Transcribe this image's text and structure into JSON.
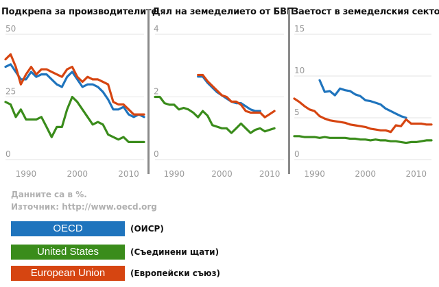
{
  "chart_data": [
    {
      "type": "line",
      "title": "Подкрепа за производителите",
      "y_ticks": [
        "50",
        "25",
        "0"
      ],
      "x_ticks": [
        "1990",
        "2000",
        "2010"
      ],
      "ylim": [
        0,
        50
      ],
      "xlim": [
        1986,
        2013
      ],
      "grid": true,
      "series": [
        {
          "name": "OECD",
          "x": [
            1986,
            1987,
            1988,
            1989,
            1990,
            1991,
            1992,
            1993,
            1994,
            1995,
            1996,
            1997,
            1998,
            1999,
            2000,
            2001,
            2002,
            2003,
            2004,
            2005,
            2006,
            2007,
            2008,
            2009,
            2010,
            2011,
            2012,
            2013
          ],
          "values": [
            37,
            38,
            35,
            32,
            32,
            35,
            33,
            34,
            34,
            32,
            30,
            29,
            33,
            35,
            32,
            29,
            30,
            30,
            29,
            27,
            24,
            20,
            20,
            21,
            18,
            17,
            18,
            17
          ]
        },
        {
          "name": "United States",
          "x": [
            1986,
            1987,
            1988,
            1989,
            1990,
            1991,
            1992,
            1993,
            1994,
            1995,
            1996,
            1997,
            1998,
            1999,
            2000,
            2001,
            2002,
            2003,
            2004,
            2005,
            2006,
            2007,
            2008,
            2009,
            2010,
            2011,
            2012,
            2013
          ],
          "values": [
            23,
            22,
            17,
            20,
            16,
            16,
            16,
            17,
            13,
            9,
            13,
            13,
            20,
            25,
            23,
            20,
            17,
            14,
            15,
            14,
            10,
            9,
            8,
            9,
            7,
            7,
            7,
            7
          ]
        },
        {
          "name": "European Union",
          "x": [
            1986,
            1987,
            1988,
            1989,
            1990,
            1991,
            1992,
            1993,
            1994,
            1995,
            1996,
            1997,
            1998,
            1999,
            2000,
            2001,
            2002,
            2003,
            2004,
            2005,
            2006,
            2007,
            2008,
            2009,
            2010,
            2011,
            2012,
            2013
          ],
          "values": [
            40,
            42,
            37,
            30,
            34,
            37,
            34,
            36,
            36,
            35,
            34,
            33,
            36,
            37,
            33,
            31,
            33,
            32,
            32,
            31,
            30,
            23,
            22,
            22,
            20,
            18,
            18,
            18
          ]
        }
      ]
    },
    {
      "type": "line",
      "title": "Дял на земеделието от БВП",
      "y_ticks": [
        "4",
        "2",
        "0"
      ],
      "x_ticks": [
        "1990",
        "2000",
        "2010"
      ],
      "ylim": [
        0,
        4
      ],
      "xlim": [
        1986,
        2013
      ],
      "grid": true,
      "series": [
        {
          "name": "OECD",
          "x": [
            1995,
            1996,
            1997,
            1998,
            1999,
            2000,
            2001,
            2002,
            2003,
            2004,
            2005,
            2006,
            2007,
            2008
          ],
          "values": [
            2.65,
            2.65,
            2.45,
            2.3,
            2.15,
            2.05,
            1.95,
            1.85,
            1.8,
            1.8,
            1.7,
            1.6,
            1.55,
            1.55
          ]
        },
        {
          "name": "United States",
          "x": [
            1986,
            1987,
            1988,
            1989,
            1990,
            1991,
            1992,
            1993,
            1994,
            1995,
            1996,
            1997,
            1998,
            1999,
            2000,
            2001,
            2002,
            2003,
            2004,
            2005,
            2006,
            2007,
            2008,
            2009,
            2010,
            2011
          ],
          "values": [
            2.0,
            2.0,
            1.8,
            1.75,
            1.75,
            1.6,
            1.65,
            1.6,
            1.5,
            1.35,
            1.55,
            1.4,
            1.1,
            1.05,
            1.0,
            1.0,
            0.85,
            1.0,
            1.15,
            1.0,
            0.85,
            0.95,
            1.0,
            0.9,
            0.95,
            1.0
          ]
        },
        {
          "name": "European Union",
          "x": [
            1995,
            1996,
            1997,
            1998,
            1999,
            2000,
            2001,
            2002,
            2003,
            2004,
            2005,
            2006,
            2007,
            2008,
            2009,
            2010,
            2011
          ],
          "values": [
            2.7,
            2.7,
            2.5,
            2.35,
            2.2,
            2.05,
            2.0,
            1.85,
            1.85,
            1.75,
            1.55,
            1.5,
            1.5,
            1.5,
            1.35,
            1.45,
            1.55
          ]
        }
      ]
    },
    {
      "type": "line",
      "title": "Заетост в земеделския сектор",
      "y_ticks": [
        "15",
        "10",
        "5",
        "0"
      ],
      "x_ticks": [
        "1990",
        "2000",
        "2010"
      ],
      "ylim": [
        0,
        15
      ],
      "xlim": [
        1986,
        2013
      ],
      "grid": true,
      "series": [
        {
          "name": "OECD",
          "x": [
            1991,
            1992,
            1993,
            1994,
            1995,
            1996,
            1997,
            1998,
            1999,
            2000,
            2001,
            2002,
            2003,
            2004,
            2005,
            2006,
            2007,
            2008
          ],
          "values": [
            9.5,
            8.1,
            8.2,
            7.7,
            8.5,
            8.3,
            8.2,
            7.8,
            7.6,
            7.1,
            7.0,
            6.8,
            6.6,
            6.1,
            5.8,
            5.5,
            5.2,
            5.0
          ]
        },
        {
          "name": "United States",
          "x": [
            1986,
            1987,
            1988,
            1989,
            1990,
            1991,
            1992,
            1993,
            1994,
            1995,
            1996,
            1997,
            1998,
            1999,
            2000,
            2001,
            2002,
            2003,
            2004,
            2005,
            2006,
            2007,
            2008,
            2009,
            2010,
            2011,
            2012,
            2013
          ],
          "values": [
            2.8,
            2.8,
            2.7,
            2.7,
            2.7,
            2.6,
            2.7,
            2.6,
            2.6,
            2.6,
            2.6,
            2.5,
            2.5,
            2.4,
            2.4,
            2.3,
            2.4,
            2.3,
            2.3,
            2.2,
            2.2,
            2.1,
            2.0,
            2.1,
            2.1,
            2.2,
            2.3,
            2.3
          ]
        },
        {
          "name": "European Union",
          "x": [
            1986,
            1987,
            1988,
            1989,
            1990,
            1991,
            1992,
            1993,
            1994,
            1995,
            1996,
            1997,
            1998,
            1999,
            2000,
            2001,
            2002,
            2003,
            2004,
            2005,
            2006,
            2007,
            2008,
            2009,
            2010,
            2011,
            2012,
            2013
          ],
          "values": [
            7.3,
            6.9,
            6.4,
            6.0,
            5.8,
            5.2,
            4.9,
            4.7,
            4.6,
            4.5,
            4.4,
            4.2,
            4.1,
            4.0,
            3.9,
            3.7,
            3.6,
            3.5,
            3.5,
            3.3,
            4.1,
            4.0,
            4.8,
            4.3,
            4.3,
            4.3,
            4.2,
            4.2
          ]
        }
      ]
    }
  ],
  "note": {
    "units": "Данните са в %.",
    "source": "Източник: http://www.oecd.org"
  },
  "legend": [
    {
      "label": "OECD",
      "translation": "(ОИСР)",
      "color": "#1f74bd"
    },
    {
      "label": "United States",
      "translation": "(Съединени щати)",
      "color": "#3a8c1b"
    },
    {
      "label": "European Union",
      "translation": "(Европейски съюз)",
      "color": "#d64511"
    }
  ]
}
